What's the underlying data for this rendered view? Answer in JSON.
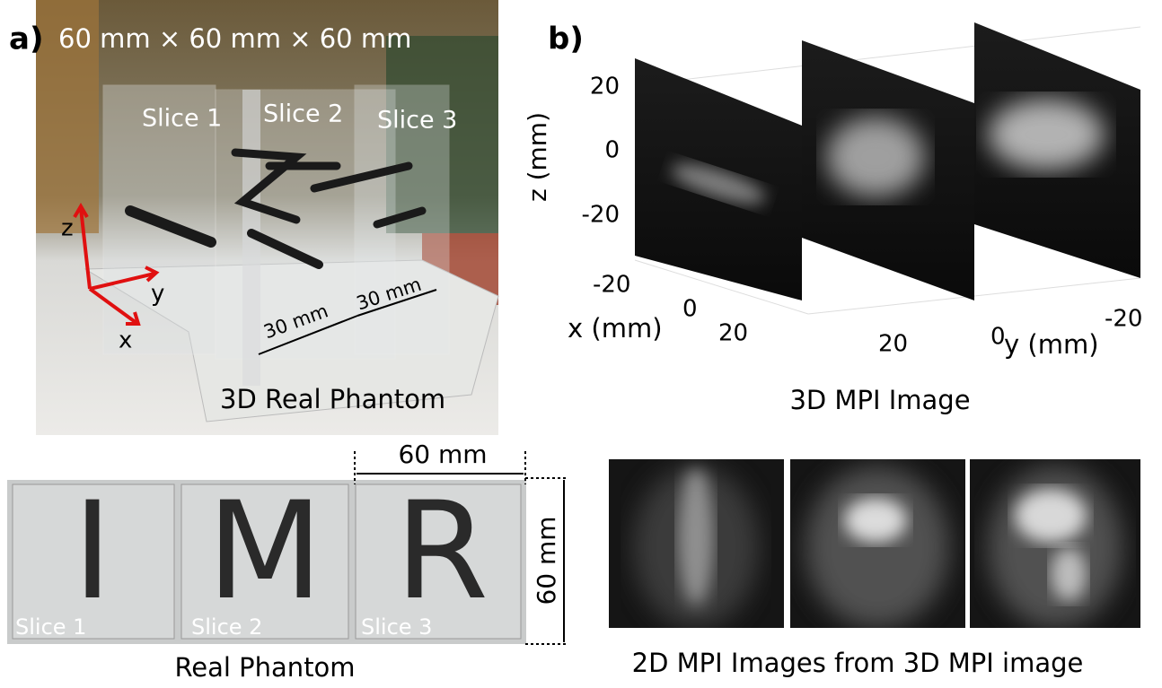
{
  "panel_a": {
    "label": "a)",
    "dimensions": "60 mm × 60 mm × 60 mm",
    "slices": [
      "Slice 1",
      "Slice 2",
      "Slice 3"
    ],
    "axes": [
      "z",
      "y",
      "x"
    ],
    "spacings": [
      "30 mm",
      "30 mm"
    ],
    "caption": "3D Real Phantom"
  },
  "phantom": {
    "letters": [
      "I",
      "M",
      "R"
    ],
    "slices": [
      "Slice 1",
      "Slice 2",
      "Slice 3"
    ],
    "width": "60 mm",
    "height": "60 mm",
    "caption": "Real Phantom"
  },
  "panel_b": {
    "label": "b)",
    "z_label": "z (mm)",
    "z_ticks": [
      "20",
      "0",
      "-20"
    ],
    "x_label": "x (mm)",
    "x_ticks": [
      "-20",
      "0",
      "20"
    ],
    "y_label": "y (mm)",
    "y_ticks": [
      "20",
      "0",
      "-20"
    ],
    "caption": "3D MPI Image"
  },
  "images_2d": {
    "caption": "2D MPI Images from 3D MPI image"
  }
}
